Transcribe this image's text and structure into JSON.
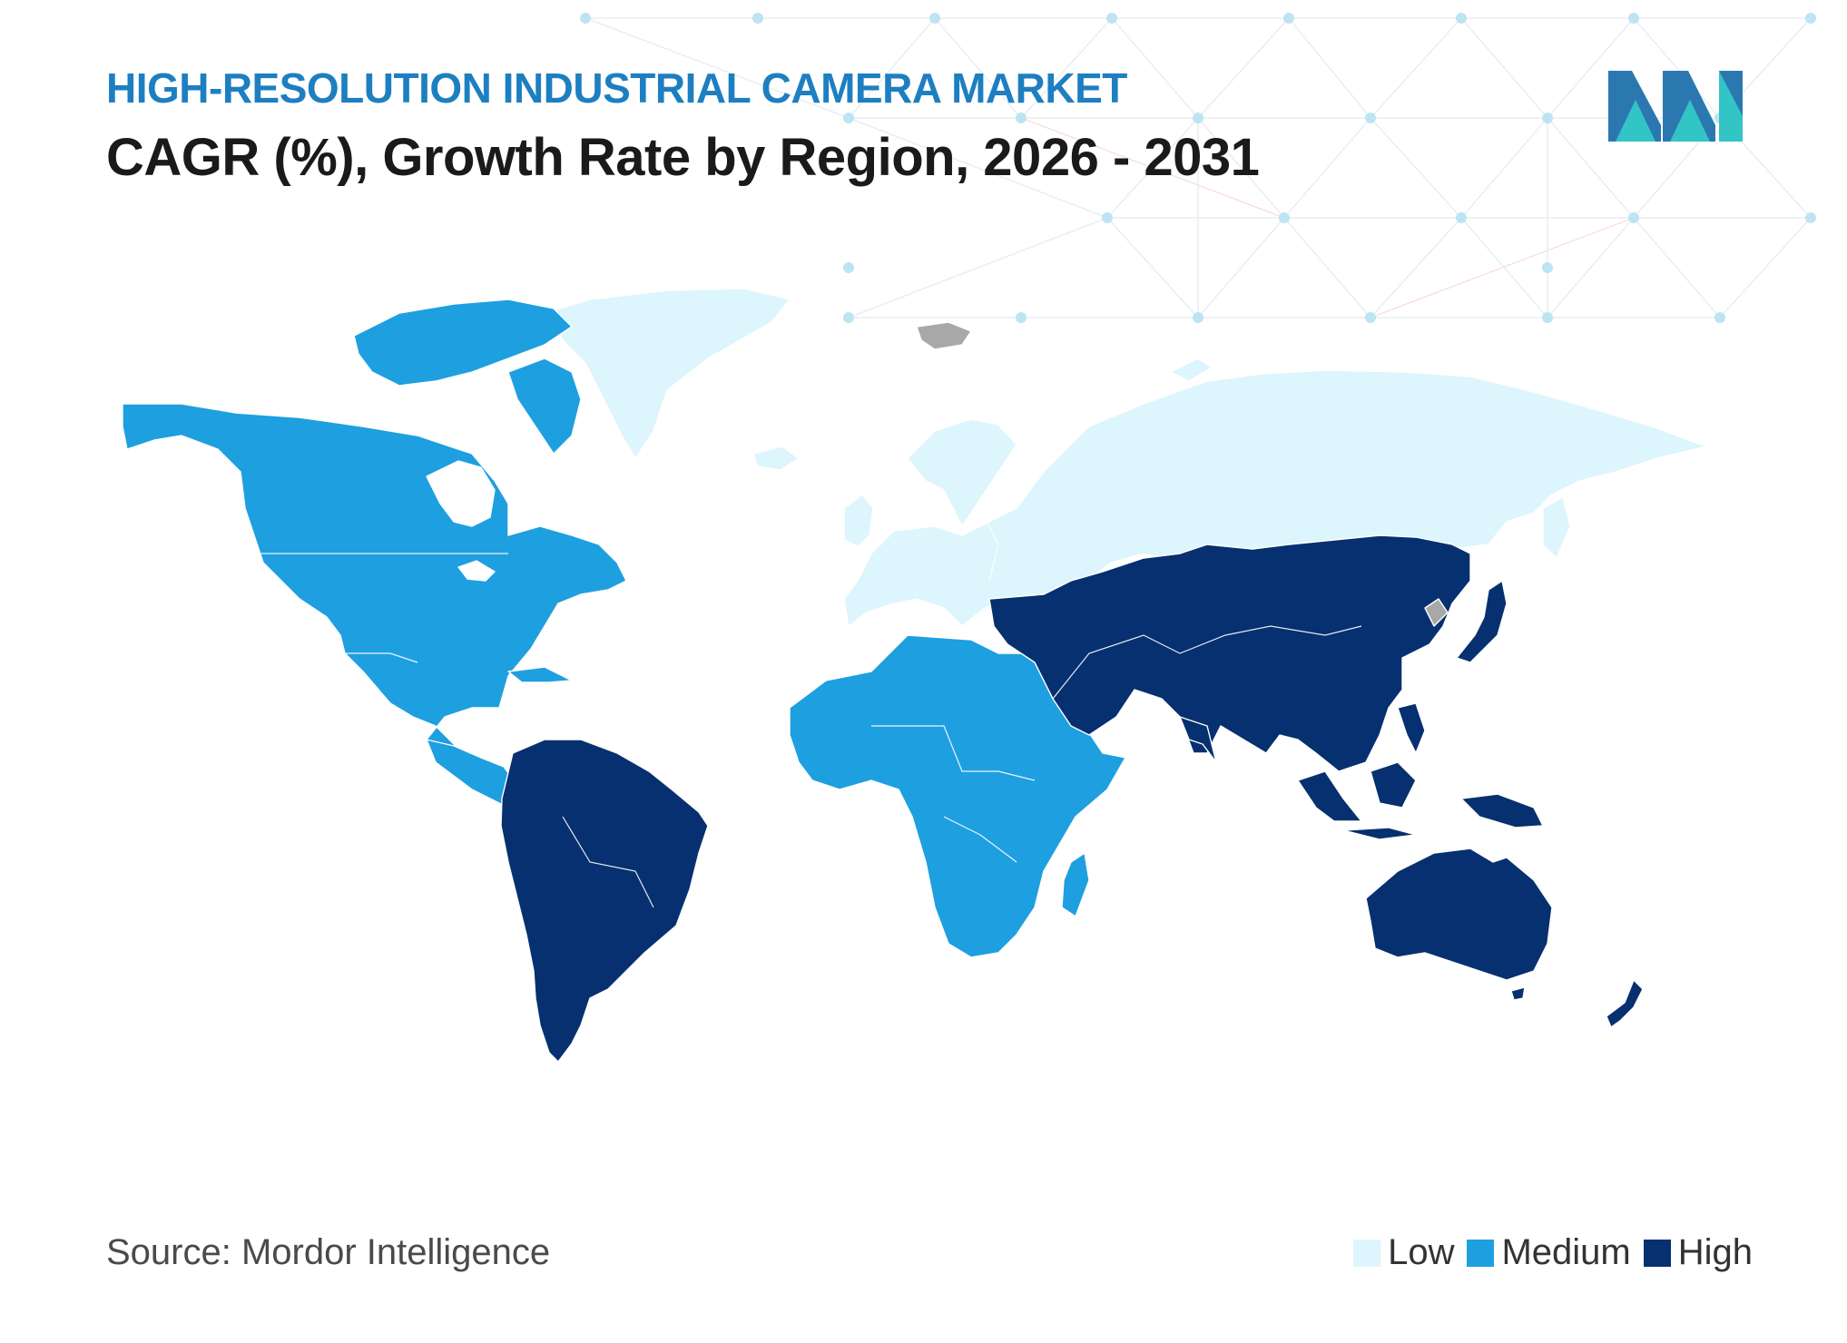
{
  "header": {
    "eyebrow": "HIGH-RESOLUTION INDUSTRIAL CAMERA MARKET",
    "title": "CAGR (%), Growth Rate by Region, 2026 - 2031"
  },
  "footer": {
    "source": "Source: Mordor Intelligence"
  },
  "legend": [
    {
      "label": "Low",
      "color": "#ddf5fc"
    },
    {
      "label": "Medium",
      "color": "#1e9fe0"
    },
    {
      "label": "High",
      "color": "#06306f"
    }
  ],
  "regions": {
    "north-america": "Medium",
    "south-america": "High",
    "europe-russia": "Low",
    "africa": "Medium",
    "asia-pacific": "High",
    "oceania": "High"
  },
  "colors": {
    "eyebrow": "#1d7fc1",
    "no_data": "#a8a8a8",
    "logo_dark": "#2b78b0",
    "logo_teal": "#33c4c6"
  }
}
